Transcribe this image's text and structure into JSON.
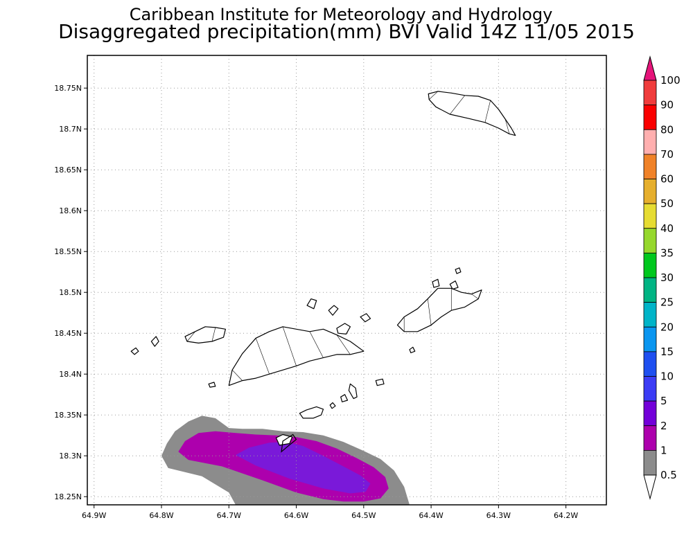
{
  "title": {
    "line1": "Caribbean Institute for Meteorology and Hydrology",
    "line2": "Disaggregated precipitation(mm) BVI Valid 14Z 11/05 2015"
  },
  "map": {
    "lon_min": -64.91,
    "lon_max": -64.14,
    "lat_min": 18.24,
    "lat_max": 18.79,
    "grid": true,
    "lon_ticks": [
      {
        "value": -64.9,
        "label": "64.9W"
      },
      {
        "value": -64.8,
        "label": "64.8W"
      },
      {
        "value": -64.7,
        "label": "64.7W"
      },
      {
        "value": -64.6,
        "label": "64.6W"
      },
      {
        "value": -64.5,
        "label": "64.5W"
      },
      {
        "value": -64.4,
        "label": "64.4W"
      },
      {
        "value": -64.3,
        "label": "64.3W"
      },
      {
        "value": -64.2,
        "label": "64.2W"
      }
    ],
    "lat_ticks": [
      {
        "value": 18.75,
        "label": "18.75N"
      },
      {
        "value": 18.7,
        "label": "18.7N"
      },
      {
        "value": 18.65,
        "label": "18.65N"
      },
      {
        "value": 18.6,
        "label": "18.6N"
      },
      {
        "value": 18.55,
        "label": "18.55N"
      },
      {
        "value": 18.5,
        "label": "18.5N"
      },
      {
        "value": 18.45,
        "label": "18.45N"
      },
      {
        "value": 18.4,
        "label": "18.4N"
      },
      {
        "value": 18.35,
        "label": "18.35N"
      },
      {
        "value": 18.3,
        "label": "18.3N"
      },
      {
        "value": 18.25,
        "label": "18.25N"
      }
    ],
    "islands": [
      {
        "name": "anegada",
        "points": [
          [
            -64.404,
            18.743
          ],
          [
            -64.39,
            18.746
          ],
          [
            -64.37,
            18.744
          ],
          [
            -64.35,
            18.741
          ],
          [
            -64.33,
            18.74
          ],
          [
            -64.312,
            18.735
          ],
          [
            -64.3,
            18.724
          ],
          [
            -64.29,
            18.712
          ],
          [
            -64.281,
            18.701
          ],
          [
            -64.275,
            18.692
          ],
          [
            -64.284,
            18.694
          ],
          [
            -64.3,
            18.701
          ],
          [
            -64.32,
            18.708
          ],
          [
            -64.345,
            18.713
          ],
          [
            -64.372,
            18.718
          ],
          [
            -64.393,
            18.727
          ],
          [
            -64.403,
            18.736
          ]
        ]
      },
      {
        "name": "tortola",
        "points": [
          [
            -64.7,
            18.386
          ],
          [
            -64.68,
            18.392
          ],
          [
            -64.66,
            18.395
          ],
          [
            -64.64,
            18.4
          ],
          [
            -64.62,
            18.405
          ],
          [
            -64.6,
            18.41
          ],
          [
            -64.58,
            18.416
          ],
          [
            -64.56,
            18.42
          ],
          [
            -64.54,
            18.424
          ],
          [
            -64.52,
            18.424
          ],
          [
            -64.5,
            18.428
          ],
          [
            -64.52,
            18.44
          ],
          [
            -64.54,
            18.448
          ],
          [
            -64.56,
            18.455
          ],
          [
            -64.58,
            18.452
          ],
          [
            -64.6,
            18.455
          ],
          [
            -64.62,
            18.458
          ],
          [
            -64.64,
            18.452
          ],
          [
            -64.66,
            18.444
          ],
          [
            -64.68,
            18.425
          ],
          [
            -64.695,
            18.405
          ]
        ]
      },
      {
        "name": "jost-van-dyke",
        "points": [
          [
            -64.765,
            18.446
          ],
          [
            -64.75,
            18.452
          ],
          [
            -64.735,
            18.458
          ],
          [
            -64.72,
            18.457
          ],
          [
            -64.705,
            18.455
          ],
          [
            -64.708,
            18.445
          ],
          [
            -64.725,
            18.44
          ],
          [
            -64.745,
            18.438
          ],
          [
            -64.762,
            18.44
          ]
        ]
      },
      {
        "name": "virgin-gorda",
        "points": [
          [
            -64.45,
            18.46
          ],
          [
            -64.44,
            18.47
          ],
          [
            -64.42,
            18.48
          ],
          [
            -64.405,
            18.492
          ],
          [
            -64.39,
            18.505
          ],
          [
            -64.37,
            18.505
          ],
          [
            -64.355,
            18.5
          ],
          [
            -64.34,
            18.498
          ],
          [
            -64.325,
            18.503
          ],
          [
            -64.33,
            18.492
          ],
          [
            -64.35,
            18.482
          ],
          [
            -64.37,
            18.478
          ],
          [
            -64.385,
            18.47
          ],
          [
            -64.4,
            18.46
          ],
          [
            -64.42,
            18.452
          ],
          [
            -64.44,
            18.452
          ]
        ]
      },
      {
        "name": "guana-island",
        "points": [
          [
            -64.584,
            18.484
          ],
          [
            -64.578,
            18.492
          ],
          [
            -64.57,
            18.49
          ],
          [
            -64.574,
            18.48
          ]
        ]
      },
      {
        "name": "beef-island",
        "points": [
          [
            -64.54,
            18.456
          ],
          [
            -64.528,
            18.462
          ],
          [
            -64.52,
            18.458
          ],
          [
            -64.526,
            18.449
          ],
          [
            -64.538,
            18.45
          ]
        ]
      },
      {
        "name": "peter-island",
        "points": [
          [
            -64.595,
            18.352
          ],
          [
            -64.585,
            18.356
          ],
          [
            -64.57,
            18.36
          ],
          [
            -64.56,
            18.357
          ],
          [
            -64.563,
            18.35
          ],
          [
            -64.575,
            18.346
          ],
          [
            -64.59,
            18.346
          ]
        ]
      },
      {
        "name": "norman-island",
        "points": [
          [
            -64.63,
            18.322
          ],
          [
            -64.62,
            18.326
          ],
          [
            -64.606,
            18.323
          ],
          [
            -64.61,
            18.315
          ],
          [
            -64.625,
            18.313
          ]
        ]
      },
      {
        "name": "cooper-island",
        "points": [
          [
            -64.52,
            18.388
          ],
          [
            -64.512,
            18.383
          ],
          [
            -64.51,
            18.372
          ],
          [
            -64.515,
            18.37
          ],
          [
            -64.522,
            18.38
          ]
        ]
      },
      {
        "name": "ginger-island",
        "points": [
          [
            -64.482,
            18.392
          ],
          [
            -64.472,
            18.394
          ],
          [
            -64.47,
            18.388
          ],
          [
            -64.48,
            18.386
          ]
        ]
      },
      {
        "name": "salt-island",
        "points": [
          [
            -64.534,
            18.372
          ],
          [
            -64.528,
            18.375
          ],
          [
            -64.524,
            18.368
          ],
          [
            -64.532,
            18.366
          ]
        ]
      },
      {
        "name": "great-camanoe",
        "points": [
          [
            -64.552,
            18.478
          ],
          [
            -64.544,
            18.484
          ],
          [
            -64.538,
            18.48
          ],
          [
            -64.546,
            18.472
          ]
        ]
      },
      {
        "name": "thatch-island",
        "points": [
          [
            -64.845,
            18.428
          ],
          [
            -64.838,
            18.432
          ],
          [
            -64.834,
            18.428
          ],
          [
            -64.84,
            18.424
          ]
        ]
      },
      {
        "name": "little-thatch",
        "points": [
          [
            -64.815,
            18.44
          ],
          [
            -64.808,
            18.446
          ],
          [
            -64.804,
            18.44
          ],
          [
            -64.81,
            18.434
          ]
        ]
      },
      {
        "name": "necker-island",
        "points": [
          [
            -64.364,
            18.528
          ],
          [
            -64.358,
            18.53
          ],
          [
            -64.356,
            18.525
          ],
          [
            -64.362,
            18.523
          ]
        ]
      },
      {
        "name": "prickly-pear",
        "points": [
          [
            -64.372,
            18.51
          ],
          [
            -64.364,
            18.514
          ],
          [
            -64.36,
            18.506
          ],
          [
            -64.368,
            18.504
          ]
        ]
      },
      {
        "name": "scrub-island",
        "points": [
          [
            -64.505,
            18.47
          ],
          [
            -64.496,
            18.474
          ],
          [
            -64.49,
            18.468
          ],
          [
            -64.498,
            18.464
          ]
        ]
      },
      {
        "name": "mosquito-island",
        "points": [
          [
            -64.398,
            18.513
          ],
          [
            -64.39,
            18.516
          ],
          [
            -64.388,
            18.508
          ],
          [
            -64.396,
            18.506
          ]
        ]
      },
      {
        "name": "sandy-cay",
        "points": [
          [
            -64.73,
            18.388
          ],
          [
            -64.722,
            18.39
          ],
          [
            -64.72,
            18.385
          ],
          [
            -64.728,
            18.384
          ]
        ]
      },
      {
        "name": "dead-chest",
        "points": [
          [
            -64.55,
            18.362
          ],
          [
            -64.546,
            18.365
          ],
          [
            -64.542,
            18.361
          ],
          [
            -64.547,
            18.358
          ]
        ]
      },
      {
        "name": "broken-jerusalem",
        "points": [
          [
            -64.432,
            18.43
          ],
          [
            -64.427,
            18.433
          ],
          [
            -64.424,
            18.428
          ],
          [
            -64.43,
            18.426
          ]
        ]
      }
    ]
  },
  "precip": {
    "contours": [
      {
        "color": "#8c8c8c",
        "points": [
          [
            -64.8,
            18.3
          ],
          [
            -64.792,
            18.315
          ],
          [
            -64.78,
            18.33
          ],
          [
            -64.76,
            18.342
          ],
          [
            -64.74,
            18.349
          ],
          [
            -64.72,
            18.346
          ],
          [
            -64.7,
            18.334
          ],
          [
            -64.68,
            18.333
          ],
          [
            -64.65,
            18.333
          ],
          [
            -64.62,
            18.33
          ],
          [
            -64.59,
            18.329
          ],
          [
            -64.56,
            18.325
          ],
          [
            -64.53,
            18.317
          ],
          [
            -64.5,
            18.306
          ],
          [
            -64.475,
            18.296
          ],
          [
            -64.455,
            18.282
          ],
          [
            -64.44,
            18.262
          ],
          [
            -64.432,
            18.24
          ],
          [
            -64.69,
            18.24
          ],
          [
            -64.7,
            18.255
          ],
          [
            -64.74,
            18.275
          ],
          [
            -64.79,
            18.285
          ]
        ]
      },
      {
        "color": "#ad00ad",
        "points": [
          [
            -64.775,
            18.305
          ],
          [
            -64.765,
            18.318
          ],
          [
            -64.745,
            18.328
          ],
          [
            -64.72,
            18.33
          ],
          [
            -64.69,
            18.328
          ],
          [
            -64.66,
            18.326
          ],
          [
            -64.63,
            18.325
          ],
          [
            -64.6,
            18.323
          ],
          [
            -64.57,
            18.318
          ],
          [
            -64.54,
            18.309
          ],
          [
            -64.51,
            18.297
          ],
          [
            -64.485,
            18.286
          ],
          [
            -64.468,
            18.274
          ],
          [
            -64.463,
            18.26
          ],
          [
            -64.475,
            18.248
          ],
          [
            -64.5,
            18.244
          ],
          [
            -64.53,
            18.244
          ],
          [
            -64.56,
            18.247
          ],
          [
            -64.6,
            18.255
          ],
          [
            -64.65,
            18.27
          ],
          [
            -64.71,
            18.287
          ],
          [
            -64.76,
            18.295
          ]
        ]
      },
      {
        "color": "#7a19d9",
        "points": [
          [
            -64.69,
            18.301
          ],
          [
            -64.67,
            18.31
          ],
          [
            -64.64,
            18.316
          ],
          [
            -64.615,
            18.317
          ],
          [
            -64.59,
            18.312
          ],
          [
            -64.56,
            18.3
          ],
          [
            -64.53,
            18.287
          ],
          [
            -64.505,
            18.276
          ],
          [
            -64.49,
            18.266
          ],
          [
            -64.497,
            18.256
          ],
          [
            -64.52,
            18.254
          ],
          [
            -64.56,
            18.26
          ],
          [
            -64.61,
            18.272
          ],
          [
            -64.66,
            18.288
          ]
        ]
      }
    ],
    "note_islands_in_rain": [
      [
        -64.622,
        18.305
      ],
      [
        -64.612,
        18.312
      ],
      [
        -64.6,
        18.32
      ],
      [
        -64.605,
        18.326
      ],
      [
        -64.62,
        18.318
      ]
    ]
  },
  "colorbar": {
    "bins": [
      {
        "label": "0.5",
        "color": "#ffffff"
      },
      {
        "label": "1",
        "color": "#8c8c8c"
      },
      {
        "label": "2",
        "color": "#ad00ad"
      },
      {
        "label": "5",
        "color": "#7300d9"
      },
      {
        "label": "10",
        "color": "#3c3cf5"
      },
      {
        "label": "15",
        "color": "#1e4ff0"
      },
      {
        "label": "20",
        "color": "#0a96f0"
      },
      {
        "label": "25",
        "color": "#00b4c8"
      },
      {
        "label": "30",
        "color": "#00b483"
      },
      {
        "label": "35",
        "color": "#00c81e"
      },
      {
        "label": "40",
        "color": "#96d82d"
      },
      {
        "label": "50",
        "color": "#e6dc32"
      },
      {
        "label": "60",
        "color": "#e6af2d"
      },
      {
        "label": "70",
        "color": "#f08228"
      },
      {
        "label": "80",
        "color": "#ffafaf"
      },
      {
        "label": "90",
        "color": "#fa0000"
      },
      {
        "label": "100",
        "color": "#f03c3c"
      }
    ],
    "top_arrow_color": "#e6147a"
  }
}
